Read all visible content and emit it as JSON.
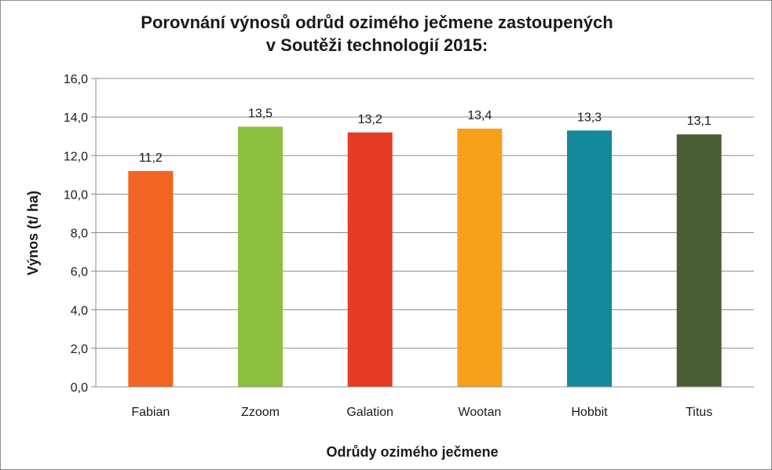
{
  "chart_data": {
    "type": "bar",
    "title": "Porovnání  výnosů odrůd ozimého ječmene zastoupených\nv Soutěži technologií 2015:",
    "xlabel": "Odrůdy ozimého ječmene",
    "ylabel": "Výnos (t/ ha)",
    "categories": [
      "Fabian",
      "Zzoom",
      "Galation",
      "Wootan",
      "Hobbit",
      "Titus"
    ],
    "values": [
      11.2,
      13.5,
      13.2,
      13.4,
      13.3,
      13.1
    ],
    "value_labels": [
      "11,2",
      "13,5",
      "13,2",
      "13,4",
      "13,3",
      "13,1"
    ],
    "colors": [
      "#f26522",
      "#8dc040",
      "#e53a24",
      "#f7a11a",
      "#14899c",
      "#4a5e33"
    ],
    "ylim": [
      0,
      16
    ],
    "yticks": [
      0,
      2,
      4,
      6,
      8,
      10,
      12,
      14,
      16
    ],
    "ytick_labels": [
      "0,0",
      "2,0",
      "4,0",
      "6,0",
      "8,0",
      "10,0",
      "12,0",
      "14,0",
      "16,0"
    ],
    "grid": true,
    "gridline_color": "#8c8c8c",
    "legend": "none"
  }
}
